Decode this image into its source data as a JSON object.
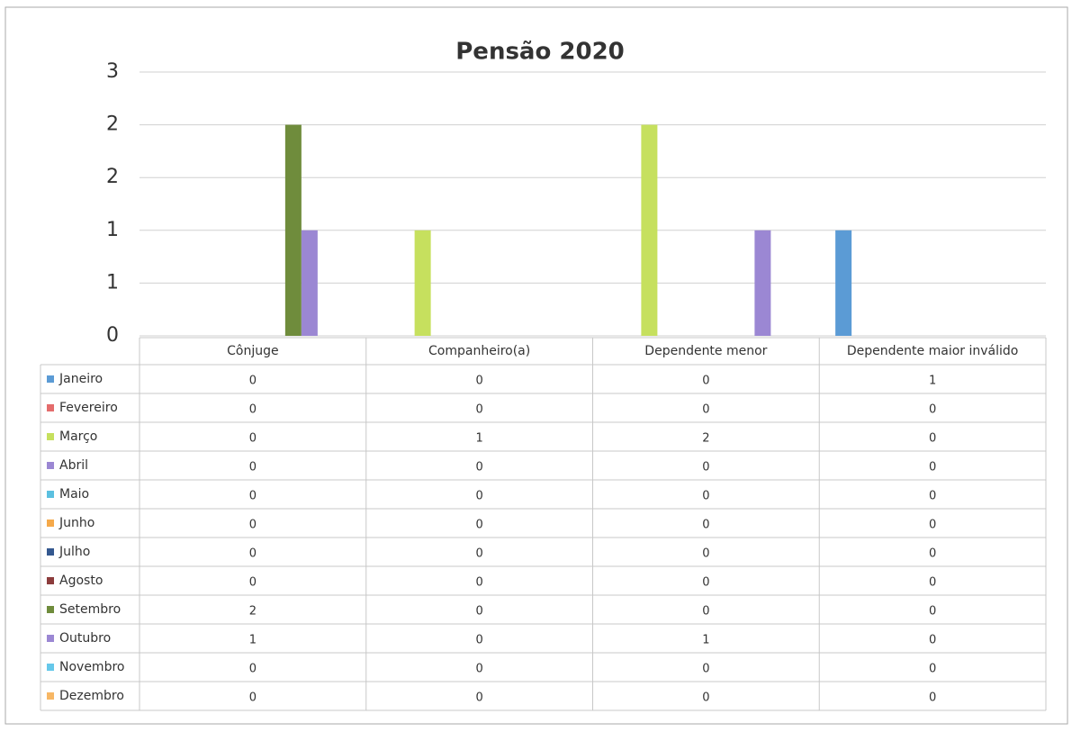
{
  "chart_data": {
    "type": "bar",
    "title": "Pensão 2020",
    "categories": [
      "Cônjuge",
      "Companheiro(a)",
      "Dependente menor",
      "Dependente maior inválido"
    ],
    "series": [
      {
        "name": "Janeiro",
        "color": "#5b9bd5",
        "values": [
          0,
          0,
          0,
          1
        ]
      },
      {
        "name": "Fevereiro",
        "color": "#e46c6c",
        "values": [
          0,
          0,
          0,
          0
        ]
      },
      {
        "name": "Março",
        "color": "#c6e05e",
        "values": [
          0,
          1,
          2,
          0
        ]
      },
      {
        "name": "Abril",
        "color": "#9b87d3",
        "values": [
          0,
          0,
          0,
          0
        ]
      },
      {
        "name": "Maio",
        "color": "#5bc0e0",
        "values": [
          0,
          0,
          0,
          0
        ]
      },
      {
        "name": "Junho",
        "color": "#f5a94a",
        "values": [
          0,
          0,
          0,
          0
        ]
      },
      {
        "name": "Julho",
        "color": "#34588f",
        "values": [
          0,
          0,
          0,
          0
        ]
      },
      {
        "name": "Agosto",
        "color": "#8c3c3c",
        "values": [
          0,
          0,
          0,
          0
        ]
      },
      {
        "name": "Setembro",
        "color": "#6f8c3c",
        "values": [
          2,
          0,
          0,
          0
        ]
      },
      {
        "name": "Outubro",
        "color": "#9b87d3",
        "values": [
          1,
          0,
          1,
          0
        ]
      },
      {
        "name": "Novembro",
        "color": "#66c8ea",
        "values": [
          0,
          0,
          0,
          0
        ]
      },
      {
        "name": "Dezembro",
        "color": "#f7b765",
        "values": [
          0,
          0,
          0,
          0
        ]
      }
    ],
    "ylim": [
      0,
      2.5
    ],
    "yticks": [
      0,
      {
        "value": 0.5,
        "label": "1"
      },
      1,
      {
        "value": 1.5,
        "label": "2"
      },
      2,
      {
        "value": 2.5,
        "label": "3"
      }
    ],
    "grid": true
  }
}
